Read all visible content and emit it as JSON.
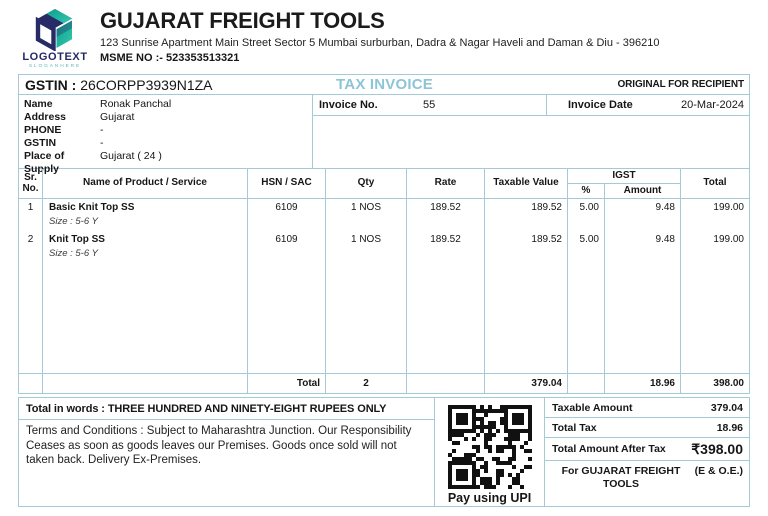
{
  "brand": {
    "logo_text": "LOGOTEXT",
    "logo_slogan": "SLOGANHERE",
    "company_name": "GUJARAT FREIGHT TOOLS",
    "address_line": "123 Sunrise Apartment Main Street Sector 5 Mumbai surburban, Dadra & Nagar Haveli and Daman & Diu - 396210",
    "msme_line": "MSME NO :- 523353513321"
  },
  "title_bar": {
    "gstin_label": "GSTIN :",
    "gstin_value": "26CORPP3939N1ZA",
    "doc_title": "TAX INVOICE",
    "copy_label": "ORIGINAL FOR RECIPIENT"
  },
  "bill_to": {
    "rows": [
      {
        "label": "Name",
        "value": "Ronak Panchal"
      },
      {
        "label": "Address",
        "value": "Gujarat"
      },
      {
        "label": "PHONE",
        "value": "-"
      },
      {
        "label": "GSTIN",
        "value": "-"
      },
      {
        "label": "Place of Supply",
        "value": "Gujarat ( 24 )"
      }
    ]
  },
  "invoice_meta": {
    "no_label": "Invoice No.",
    "no_value": "55",
    "date_label": "Invoice Date",
    "date_value": "20-Mar-2024"
  },
  "items": {
    "headers": {
      "sr": "Sr.\nNo.",
      "product": "Name of Product / Service",
      "hsn": "HSN / SAC",
      "qty": "Qty",
      "rate": "Rate",
      "taxable": "Taxable Value",
      "igst": "IGST",
      "igst_pct": "%",
      "igst_amount": "Amount",
      "total": "Total"
    },
    "rows": [
      {
        "sr": "1",
        "name": "Basic Knit Top SS",
        "size": "Size : 5-6 Y",
        "hsn": "6109",
        "qty": "1 NOS",
        "rate": "189.52",
        "taxable": "189.52",
        "pct": "5.00",
        "amount": "9.48",
        "total": "199.00"
      },
      {
        "sr": "2",
        "name": "Knit Top SS",
        "size": "Size : 5-6 Y",
        "hsn": "6109",
        "qty": "1 NOS",
        "rate": "189.52",
        "taxable": "189.52",
        "pct": "5.00",
        "amount": "9.48",
        "total": "199.00"
      }
    ],
    "totals_row": {
      "label": "Total",
      "qty": "2",
      "taxable": "379.04",
      "tax_amount": "18.96",
      "total": "398.00"
    }
  },
  "footer": {
    "total_words": "Total in words : THREE HUNDRED AND NINETY-EIGHT RUPEES ONLY",
    "terms": "Terms and Conditions : Subject to Maharashtra Junction. Our Responsibility Ceases as soon as goods leaves our Premises. Goods once sold will not taken back. Delivery Ex-Premises.",
    "qr_caption": "Pay using UPI",
    "summary": [
      {
        "label": "Taxable Amount",
        "value": "379.04"
      },
      {
        "label": "Total Tax",
        "value": "18.96"
      },
      {
        "label": "Total Amount After Tax",
        "value": "₹398.00"
      }
    ],
    "signature": {
      "for_label": "For GUJARAT FREIGHT TOOLS",
      "eoe": "(E & O.E.)"
    }
  },
  "colors": {
    "accent": "#8cc5d6",
    "border": "#a5c9d6",
    "logo_navy": "#262a63",
    "logo_teal": "#1fae9b"
  }
}
